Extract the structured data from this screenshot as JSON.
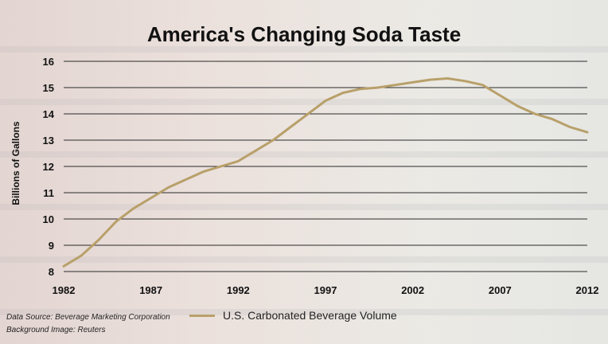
{
  "chart_data": {
    "type": "line",
    "title": "America's Changing Soda Taste",
    "ylabel": "Billions of Gallons",
    "xlabel": "",
    "ylim": [
      8,
      16
    ],
    "xlim": [
      1982,
      2012
    ],
    "yticks": [
      8,
      9,
      10,
      11,
      12,
      13,
      14,
      15,
      16
    ],
    "xticks": [
      1982,
      1987,
      1992,
      1997,
      2002,
      2007,
      2012
    ],
    "grid": true,
    "legend_position": "bottom",
    "series": [
      {
        "name": "U.S. Carbonated Beverage Volume",
        "color": "#b8a06a",
        "x": [
          1982,
          1983,
          1984,
          1985,
          1986,
          1987,
          1988,
          1989,
          1990,
          1991,
          1992,
          1993,
          1994,
          1995,
          1996,
          1997,
          1998,
          1999,
          2000,
          2001,
          2002,
          2003,
          2004,
          2005,
          2006,
          2007,
          2008,
          2009,
          2010,
          2011,
          2012
        ],
        "y": [
          8.2,
          8.6,
          9.2,
          9.9,
          10.4,
          10.8,
          11.2,
          11.5,
          11.8,
          12.0,
          12.2,
          12.6,
          13.0,
          13.5,
          14.0,
          14.5,
          14.8,
          14.95,
          15.0,
          15.1,
          15.2,
          15.3,
          15.35,
          15.25,
          15.1,
          14.7,
          14.3,
          14.0,
          13.8,
          13.5,
          13.3
        ]
      }
    ]
  },
  "notes": {
    "data_source": "Data Source: Beverage Marketing Corporation",
    "background_credit": "Background Image: Reuters"
  }
}
